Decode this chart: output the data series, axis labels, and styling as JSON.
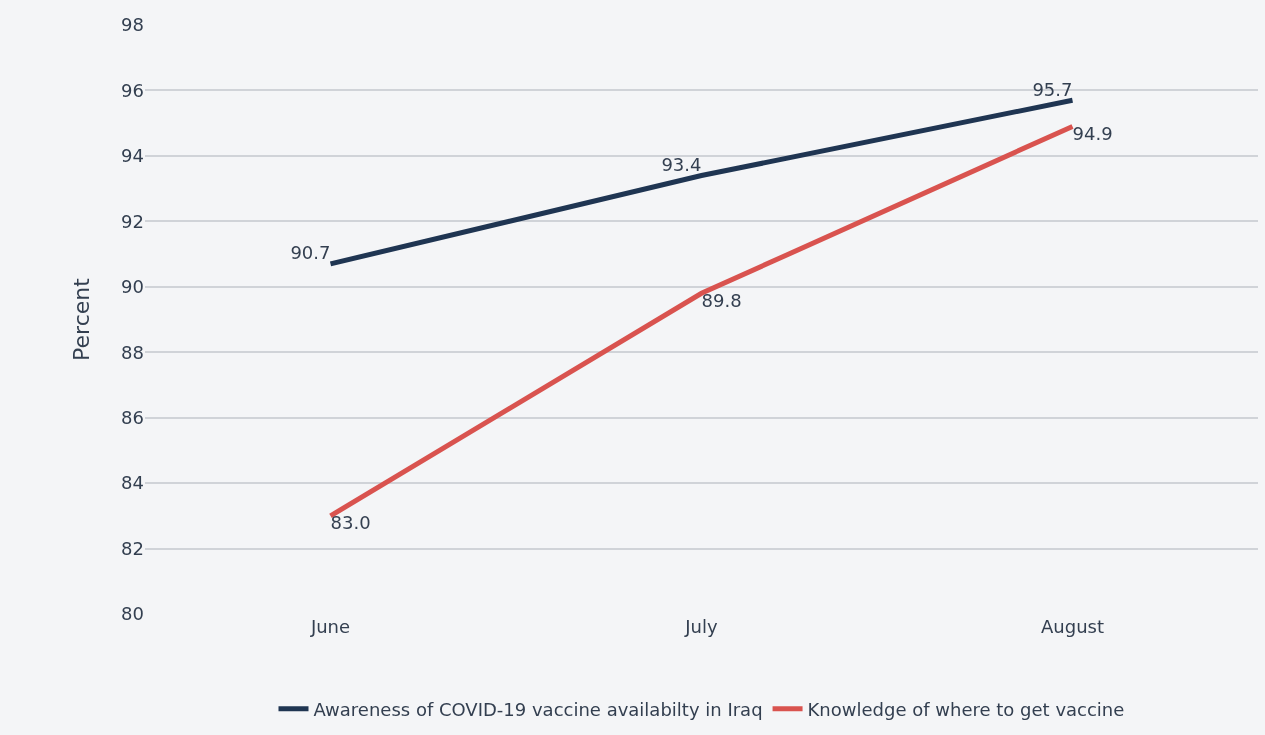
{
  "chart_data": {
    "type": "line",
    "ylabel": "Percent",
    "categories": [
      "June",
      "July",
      "August"
    ],
    "series": [
      {
        "name": "Awareness of COVID-19 vaccine availabilty in Iraq",
        "color": "#1f3552",
        "values": [
          90.7,
          93.4,
          95.7
        ],
        "value_labels": [
          "90.7",
          "93.4",
          "95.7"
        ]
      },
      {
        "name": "Knowledge of where to get vaccine",
        "color": "#d9534f",
        "values": [
          83.0,
          89.8,
          94.9
        ],
        "value_labels": [
          "83.0",
          "89.8",
          "94.9"
        ]
      }
    ],
    "ylim": [
      80,
      98
    ],
    "yticks": [
      80,
      82,
      84,
      86,
      88,
      90,
      92,
      94,
      96,
      98
    ],
    "grid": "y",
    "legend": "bottom",
    "marker": "none",
    "line_style": "solid"
  }
}
